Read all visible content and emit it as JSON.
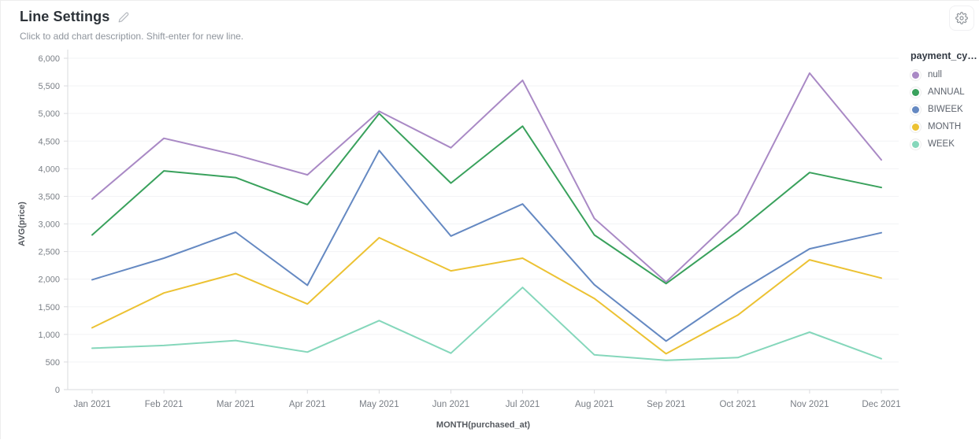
{
  "header": {
    "title": "Line Settings",
    "description_placeholder": "Click to add chart description. Shift-enter for new line.",
    "edit_icon": "pencil-icon",
    "settings_icon": "gear-icon"
  },
  "legend": {
    "title": "payment_cy…",
    "position": "top-right"
  },
  "colors": {
    "axis_line": "#dadbde",
    "gridline": "#f2f3f5",
    "tick_text": "#797e85",
    "axis_title_text": "#55595f"
  },
  "chart_data": {
    "type": "line",
    "title": "",
    "xlabel": "MONTH(purchased_at)",
    "ylabel": "AVG(price)",
    "ylim": [
      0,
      6000
    ],
    "ytick_step": 500,
    "ytick_labels": [
      "0",
      "500",
      "1,000",
      "1,500",
      "2,000",
      "2,500",
      "3,000",
      "3,500",
      "4,000",
      "4,500",
      "5,000",
      "5,500",
      "6,000"
    ],
    "grid": "horizontal",
    "legend_position": "right",
    "categories": [
      "Jan 2021",
      "Feb 2021",
      "Mar 2021",
      "Apr 2021",
      "May 2021",
      "Jun 2021",
      "Jul 2021",
      "Aug 2021",
      "Sep 2021",
      "Oct 2021",
      "Nov 2021",
      "Dec 2021"
    ],
    "series": [
      {
        "name": "null",
        "color": "#a989c5",
        "values": [
          3450,
          4550,
          4250,
          3890,
          5040,
          4380,
          5600,
          3100,
          1950,
          3180,
          5730,
          4160
        ]
      },
      {
        "name": "ANNUAL",
        "color": "#39a15c",
        "values": [
          2800,
          3960,
          3840,
          3350,
          5000,
          3740,
          4770,
          2800,
          1920,
          2870,
          3930,
          3660
        ]
      },
      {
        "name": "BIWEEK",
        "color": "#6589c2",
        "values": [
          1990,
          2380,
          2850,
          1890,
          4330,
          2780,
          3360,
          1900,
          880,
          1760,
          2550,
          2840
        ]
      },
      {
        "name": "MONTH",
        "color": "#ecc233",
        "values": [
          1120,
          1750,
          2100,
          1550,
          2750,
          2150,
          2380,
          1650,
          650,
          1350,
          2350,
          2020
        ]
      },
      {
        "name": "WEEK",
        "color": "#85d7bb",
        "values": [
          750,
          800,
          890,
          680,
          1250,
          660,
          1850,
          630,
          530,
          580,
          1040,
          560
        ]
      }
    ]
  }
}
